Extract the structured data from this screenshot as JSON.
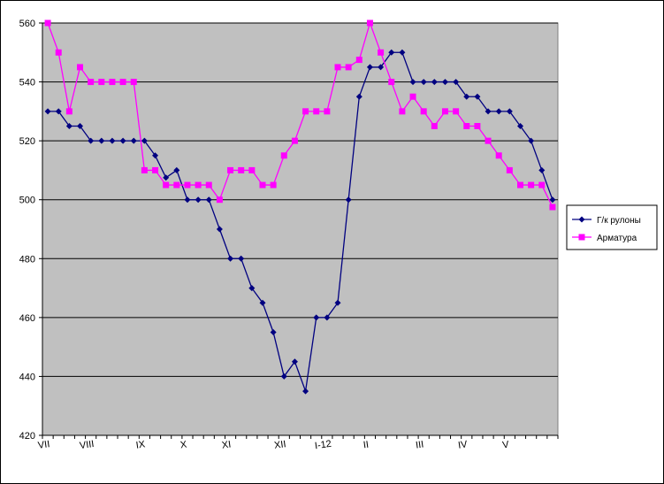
{
  "chart_data": {
    "type": "line",
    "title": "",
    "xlabel": "",
    "ylabel": "",
    "ylim": [
      420,
      560
    ],
    "yticks": [
      420,
      440,
      460,
      480,
      500,
      520,
      540,
      560
    ],
    "x_tick_labels": [
      {
        "label": "VII",
        "index": 0
      },
      {
        "label": "VIII",
        "index": 4
      },
      {
        "label": "IX",
        "index": 9
      },
      {
        "label": "X",
        "index": 13
      },
      {
        "label": "XI",
        "index": 17
      },
      {
        "label": "XII",
        "index": 22
      },
      {
        "label": "I-12",
        "index": 26
      },
      {
        "label": "II",
        "index": 30
      },
      {
        "label": "III",
        "index": 35
      },
      {
        "label": "IV",
        "index": 39
      },
      {
        "label": "V",
        "index": 43
      }
    ],
    "n_points": 48,
    "grid": "horizontal",
    "plot_background": "#c0c0c0",
    "legend_position": "right",
    "series": [
      {
        "name": "Г/к рулоны",
        "color": "#000080",
        "marker": "diamond",
        "values": [
          530,
          530,
          525,
          525,
          520,
          520,
          520,
          520,
          520,
          520,
          515,
          507.5,
          510,
          500,
          500,
          500,
          490,
          480,
          480,
          470,
          465,
          455,
          440,
          445,
          435,
          460,
          460,
          465,
          500,
          535,
          545,
          545,
          550,
          550,
          540,
          540,
          540,
          540,
          540,
          535,
          535,
          530,
          530,
          530,
          525,
          520,
          510,
          500
        ]
      },
      {
        "name": "Арматура",
        "color": "#ff00ff",
        "marker": "square",
        "values": [
          560,
          550,
          530,
          545,
          540,
          540,
          540,
          540,
          540,
          510,
          510,
          505,
          505,
          505,
          505,
          505,
          500,
          510,
          510,
          510,
          505,
          505,
          515,
          520,
          530,
          530,
          530,
          545,
          545,
          547.5,
          560,
          550,
          540,
          530,
          535,
          530,
          525,
          530,
          530,
          525,
          525,
          520,
          515,
          510,
          505,
          505,
          505,
          497.5
        ]
      }
    ]
  }
}
